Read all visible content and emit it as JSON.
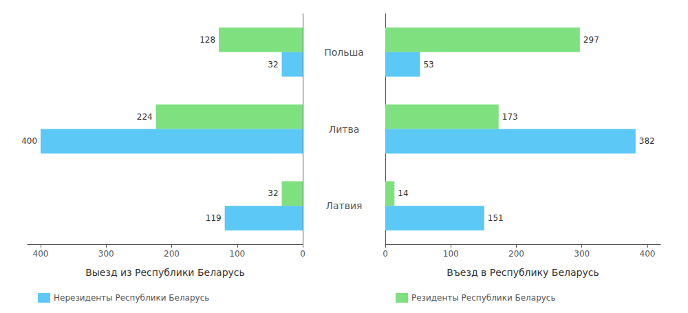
{
  "chart_data": [
    {
      "type": "bar",
      "orientation": "horizontal",
      "title": "Выезд из Республики Беларусь",
      "categories": [
        "Польша",
        "Литва",
        "Латвия"
      ],
      "series": [
        {
          "color": "#7FE07F",
          "values": [
            128,
            224,
            32
          ]
        },
        {
          "name": "Нерезиденты Республики Беларусь",
          "color": "#5BC8F5",
          "values": [
            32,
            400,
            119
          ]
        }
      ],
      "xlim": [
        420,
        0
      ],
      "xticks": [
        0,
        100,
        200,
        300,
        400
      ],
      "grid": false,
      "legend": "bottom",
      "data_labels": true,
      "tick_labels": "x"
    },
    {
      "type": "bar",
      "orientation": "horizontal",
      "title": "Въезд в Республику Беларусь",
      "categories": [
        "Польша",
        "Литва",
        "Латвия"
      ],
      "series": [
        {
          "name": "Резиденты Республики Беларусь",
          "color": "#7FE07F",
          "values": [
            297,
            173,
            14
          ]
        },
        {
          "color": "#5BC8F5",
          "values": [
            53,
            382,
            151
          ]
        }
      ],
      "xlim": [
        0,
        420
      ],
      "xticks": [
        0,
        100,
        200,
        300,
        400
      ],
      "grid": false,
      "legend": "bottom",
      "data_labels": true
    }
  ]
}
